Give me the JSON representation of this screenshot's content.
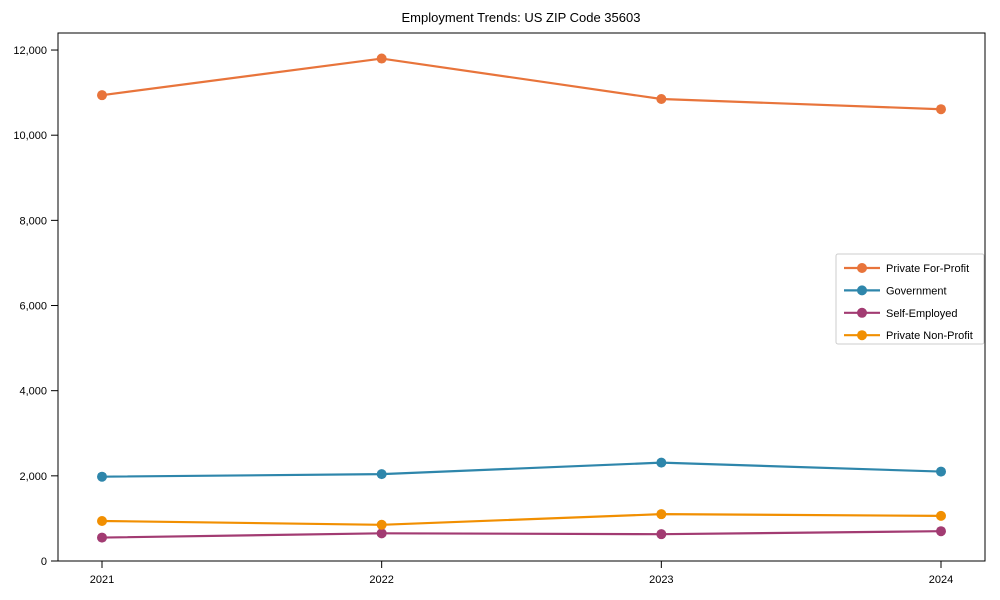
{
  "chart_data": {
    "type": "line",
    "title": "Employment Trends: US ZIP Code 35603",
    "categories": [
      "2021",
      "2022",
      "2023",
      "2024"
    ],
    "series": [
      {
        "name": "Private For-Profit",
        "color": "#E8743B",
        "values": [
          10940,
          11800,
          10850,
          10610
        ]
      },
      {
        "name": "Government",
        "color": "#2E86AB",
        "values": [
          1980,
          2040,
          2310,
          2100
        ]
      },
      {
        "name": "Self-Employed",
        "color": "#A23B72",
        "values": [
          550,
          650,
          630,
          700
        ]
      },
      {
        "name": "Private Non-Profit",
        "color": "#F18F01",
        "values": [
          940,
          850,
          1100,
          1060
        ]
      }
    ],
    "xlabel": "",
    "ylabel": "",
    "ylim": [
      0,
      12400
    ],
    "yticks": [
      0,
      2000,
      4000,
      6000,
      8000,
      10000,
      12000
    ],
    "ytick_labels": [
      "0",
      "2,000",
      "4,000",
      "6,000",
      "8,000",
      "10,000",
      "12,000"
    ],
    "grid": false,
    "legend_position": "right",
    "marker": "circle",
    "text_color": "#000000",
    "background_color": "#ffffff",
    "legend_border_color": "#cccccc"
  }
}
